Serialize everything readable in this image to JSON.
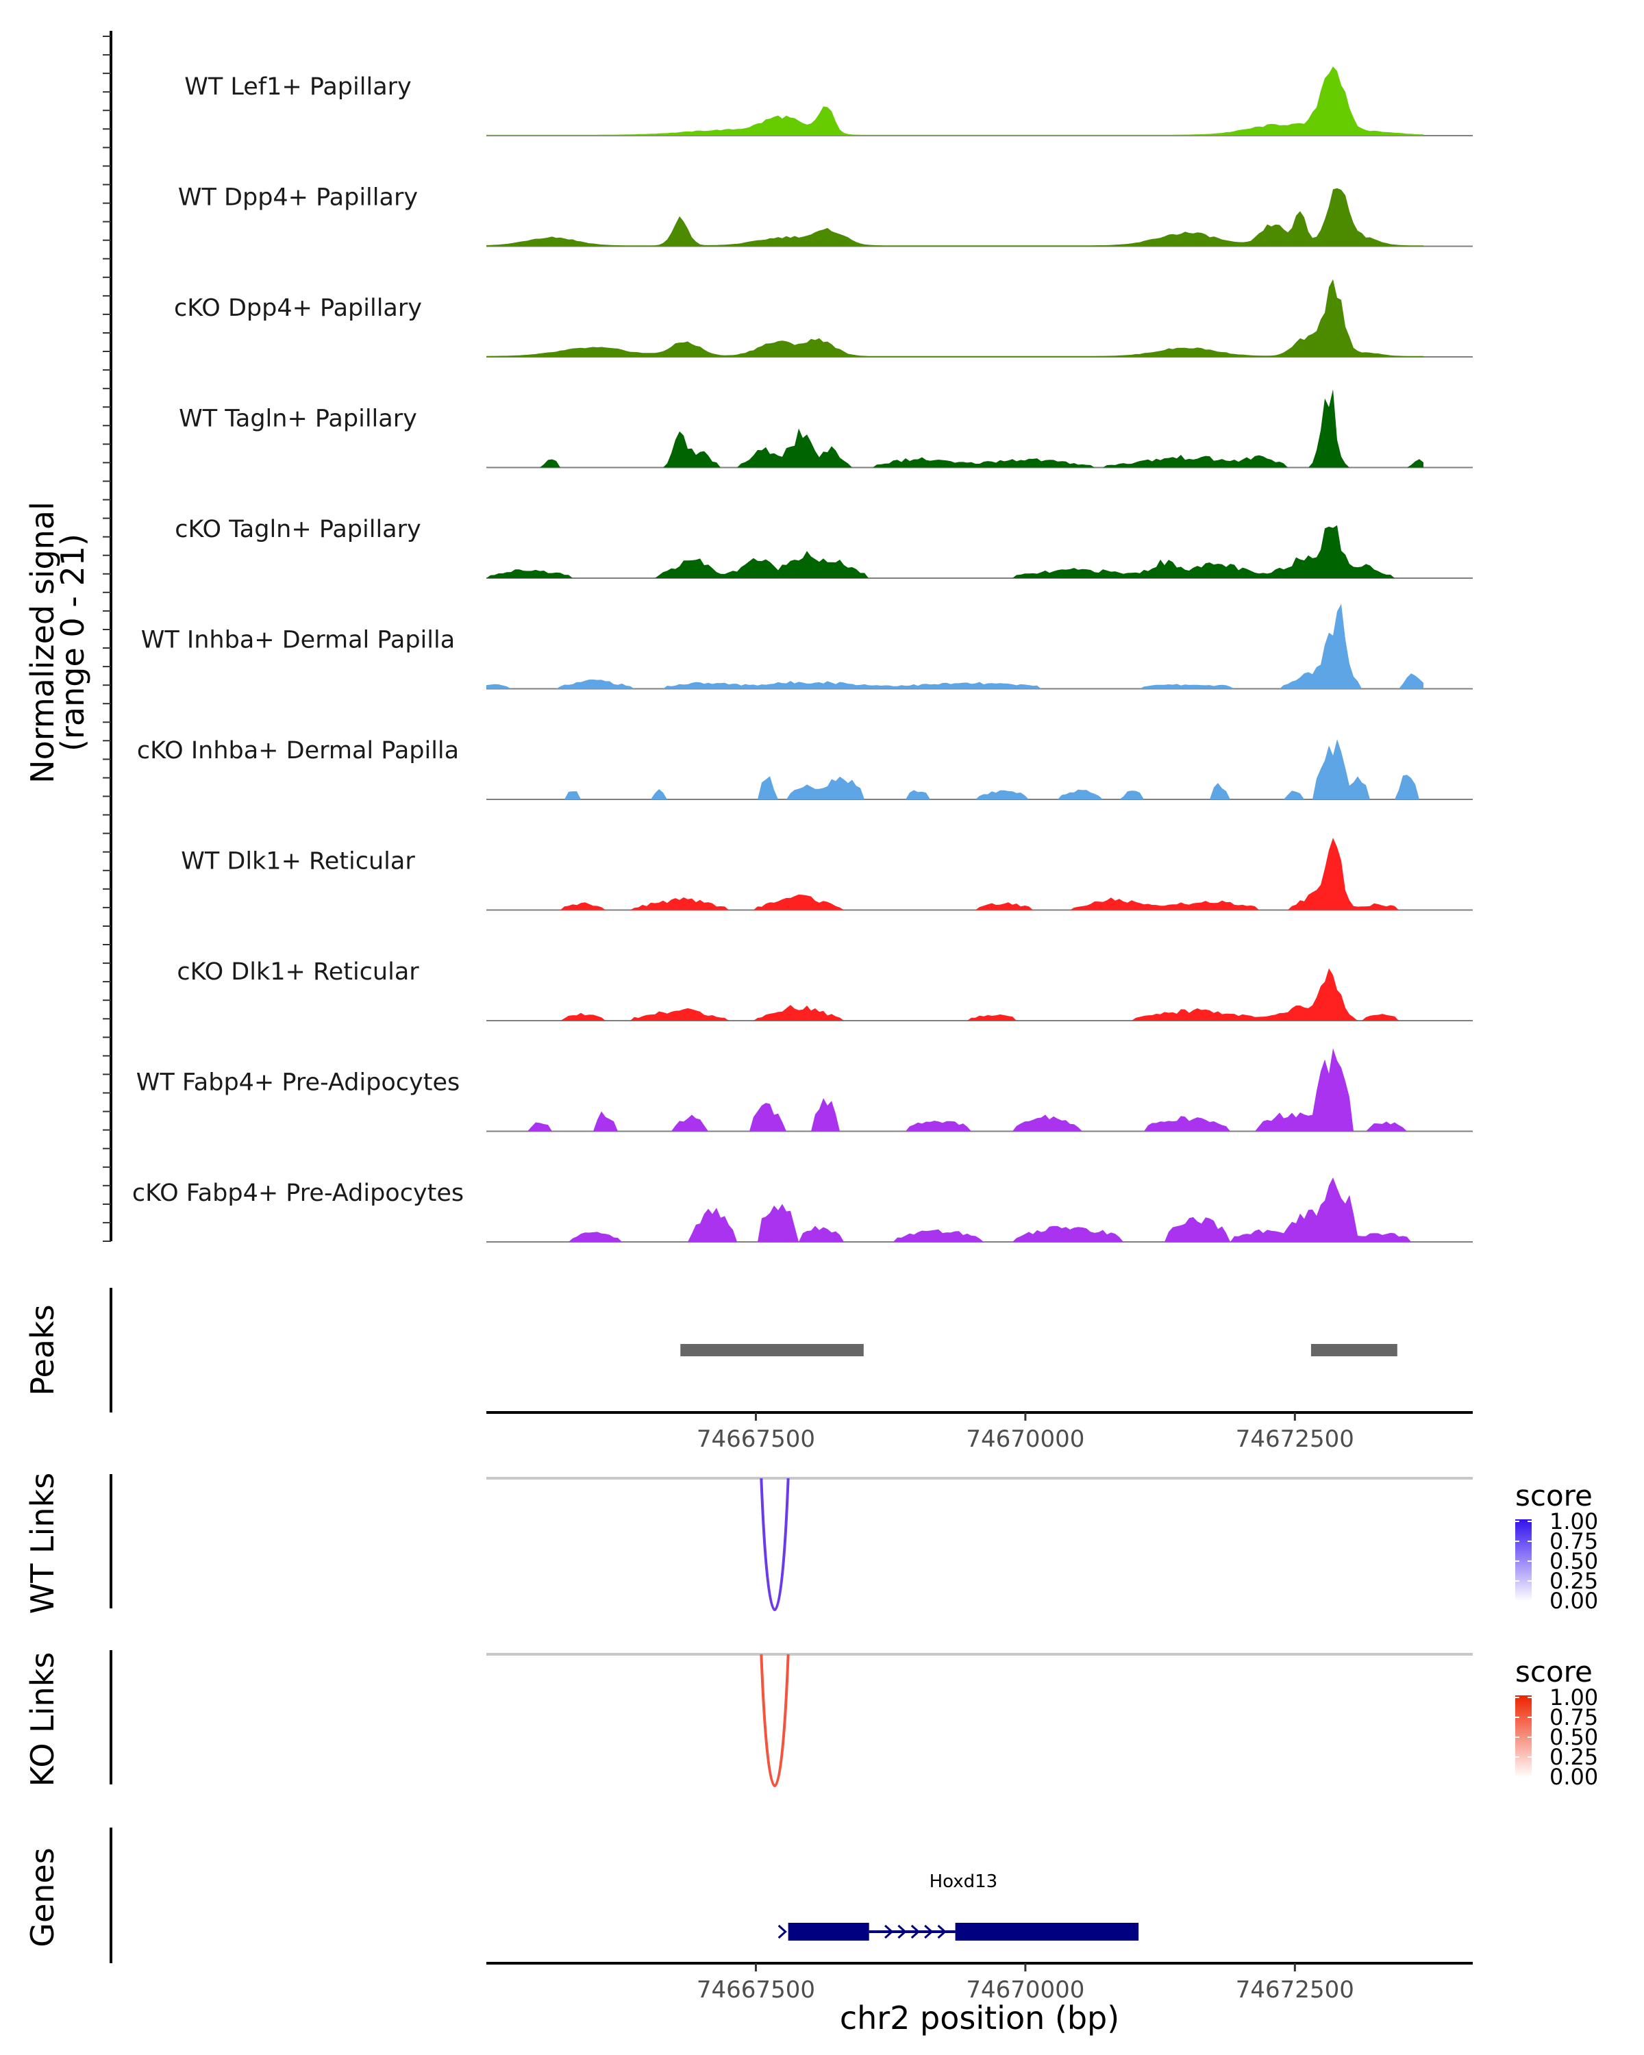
{
  "chart_data": {
    "type": "area",
    "title": "",
    "region": {
      "chromosome": "chr2",
      "start": 74665000,
      "end": 74674150
    },
    "signal_axis_label": [
      "Normalized signal",
      "(range 0 - 21)"
    ],
    "signal_range": [
      0,
      21
    ],
    "x_axis_label": "chr2 position (bp)",
    "x_ticks": [
      74667500,
      74670000,
      74672500
    ],
    "x_tick_labels": [
      "74667500",
      "74670000",
      "74672500"
    ],
    "tracks": [
      {
        "name": "WT Lef1+ Papillary",
        "color": "#66CC00",
        "style": "smooth",
        "peaks": [
          [
            74667250,
            0.07,
            900
          ],
          [
            74667750,
            0.23,
            400
          ],
          [
            74668150,
            0.38,
            160
          ],
          [
            74672400,
            0.15,
            700
          ],
          [
            74672850,
            0.95,
            230
          ],
          [
            74673200,
            0.05,
            500
          ]
        ]
      },
      {
        "name": "WT Dpp4+ Papillary",
        "color": "#4C8A00",
        "style": "smooth",
        "peaks": [
          [
            74665600,
            0.12,
            500
          ],
          [
            74666800,
            0.38,
            160
          ],
          [
            74667800,
            0.12,
            600
          ],
          [
            74668200,
            0.18,
            300
          ],
          [
            74671500,
            0.18,
            600
          ],
          [
            74672300,
            0.3,
            250
          ],
          [
            74672550,
            0.42,
            130
          ],
          [
            74672900,
            0.83,
            220
          ],
          [
            74673150,
            0.1,
            300
          ]
        ]
      },
      {
        "name": "cKO Dpp4+ Papillary",
        "color": "#4C8A00",
        "style": "smooth",
        "peaks": [
          [
            74666000,
            0.12,
            700
          ],
          [
            74666850,
            0.2,
            300
          ],
          [
            74667700,
            0.2,
            400
          ],
          [
            74668100,
            0.22,
            300
          ],
          [
            74671500,
            0.12,
            600
          ],
          [
            74672600,
            0.25,
            250
          ],
          [
            74672860,
            1.0,
            190
          ],
          [
            74673150,
            0.05,
            300
          ]
        ]
      },
      {
        "name": "WT Tagln+ Papillary",
        "color": "#006400",
        "style": "jagged",
        "peaks": [
          [
            74665600,
            0.12,
            120
          ],
          [
            74666800,
            0.42,
            150
          ],
          [
            74667000,
            0.2,
            200
          ],
          [
            74667600,
            0.25,
            300
          ],
          [
            74667920,
            0.45,
            200
          ],
          [
            74668200,
            0.25,
            200
          ],
          [
            74669000,
            0.12,
            600
          ],
          [
            74670000,
            0.12,
            800
          ],
          [
            74671500,
            0.15,
            900
          ],
          [
            74672200,
            0.12,
            300
          ],
          [
            74672810,
            1.16,
            140
          ],
          [
            74673650,
            0.12,
            120
          ]
        ]
      },
      {
        "name": "cKO Tagln+ Papillary",
        "color": "#006400",
        "style": "jagged",
        "peaks": [
          [
            74665400,
            0.12,
            600
          ],
          [
            74666900,
            0.28,
            350
          ],
          [
            74667500,
            0.28,
            300
          ],
          [
            74667950,
            0.37,
            300
          ],
          [
            74668300,
            0.2,
            300
          ],
          [
            74670500,
            0.12,
            900
          ],
          [
            74671300,
            0.2,
            300
          ],
          [
            74671800,
            0.2,
            500
          ],
          [
            74672600,
            0.3,
            400
          ],
          [
            74672830,
            0.7,
            160
          ],
          [
            74673100,
            0.18,
            400
          ]
        ]
      },
      {
        "name": "WT Inhba+ Dermal Papilla",
        "color": "#5DA5E5",
        "style": "jagged",
        "peaks": [
          [
            74665000,
            0.06,
            500
          ],
          [
            74666000,
            0.12,
            500
          ],
          [
            74667000,
            0.08,
            600
          ],
          [
            74668000,
            0.1,
            900
          ],
          [
            74669500,
            0.08,
            1200
          ],
          [
            74671500,
            0.06,
            1000
          ],
          [
            74672700,
            0.25,
            350
          ],
          [
            74672900,
            1.05,
            180
          ],
          [
            74673600,
            0.25,
            150
          ]
        ]
      },
      {
        "name": "cKO Inhba+ Dermal Papilla",
        "color": "#5DA5E5",
        "style": "blocky",
        "peaks": [
          [
            74665800,
            0.12,
            80
          ],
          [
            74666600,
            0.12,
            80
          ],
          [
            74667600,
            0.35,
            80
          ],
          [
            74668000,
            0.2,
            200
          ],
          [
            74668300,
            0.3,
            200
          ],
          [
            74669000,
            0.12,
            120
          ],
          [
            74669800,
            0.12,
            250
          ],
          [
            74670500,
            0.12,
            200
          ],
          [
            74671000,
            0.12,
            100
          ],
          [
            74671800,
            0.2,
            90
          ],
          [
            74672500,
            0.12,
            80
          ],
          [
            74672850,
            0.75,
            160
          ],
          [
            74673100,
            0.3,
            80
          ],
          [
            74673550,
            0.35,
            90
          ]
        ]
      },
      {
        "name": "WT Dlk1+ Reticular",
        "color": "#FF2020",
        "style": "jagged",
        "peaks": [
          [
            74665900,
            0.1,
            300
          ],
          [
            74666800,
            0.15,
            600
          ],
          [
            74667900,
            0.2,
            500
          ],
          [
            74669800,
            0.1,
            400
          ],
          [
            74670800,
            0.15,
            500
          ],
          [
            74671700,
            0.12,
            700
          ],
          [
            74672700,
            0.22,
            300
          ],
          [
            74672870,
            0.95,
            140
          ],
          [
            74673250,
            0.08,
            400
          ]
        ]
      },
      {
        "name": "cKO Dlk1+ Reticular",
        "color": "#FF2020",
        "style": "jagged",
        "peaks": [
          [
            74665900,
            0.1,
            300
          ],
          [
            74666800,
            0.15,
            600
          ],
          [
            74667900,
            0.2,
            500
          ],
          [
            74669700,
            0.08,
            400
          ],
          [
            74671600,
            0.15,
            800
          ],
          [
            74672600,
            0.2,
            400
          ],
          [
            74672840,
            0.6,
            180
          ],
          [
            74673300,
            0.08,
            300
          ]
        ]
      },
      {
        "name": "WT Fabp4+ Pre-Adipocytes",
        "color": "#A933EE",
        "style": "blocky",
        "peaks": [
          [
            74665500,
            0.12,
            100
          ],
          [
            74666100,
            0.25,
            100
          ],
          [
            74666900,
            0.2,
            150
          ],
          [
            74667600,
            0.35,
            150
          ],
          [
            74668150,
            0.45,
            120
          ],
          [
            74669200,
            0.15,
            300
          ],
          [
            74670200,
            0.2,
            300
          ],
          [
            74671500,
            0.18,
            400
          ],
          [
            74672500,
            0.25,
            350
          ],
          [
            74672850,
            1.05,
            170
          ],
          [
            74673350,
            0.12,
            200
          ]
        ]
      },
      {
        "name": "cKO Fabp4+ Pre-Adipocytes",
        "color": "#A933EE",
        "style": "blocky",
        "peaks": [
          [
            74666000,
            0.12,
            250
          ],
          [
            74667100,
            0.42,
            200
          ],
          [
            74667700,
            0.58,
            180
          ],
          [
            74668100,
            0.2,
            200
          ],
          [
            74669200,
            0.15,
            400
          ],
          [
            74670400,
            0.2,
            500
          ],
          [
            74671600,
            0.3,
            300
          ],
          [
            74672200,
            0.15,
            300
          ],
          [
            74672700,
            0.4,
            300
          ],
          [
            74672880,
            0.78,
            200
          ],
          [
            74673300,
            0.12,
            300
          ]
        ]
      }
    ],
    "peaks_track": {
      "label": "Peaks",
      "color": "#666666",
      "ranges": [
        [
          74666800,
          74668500
        ],
        [
          74672650,
          74673450
        ]
      ]
    },
    "links": [
      {
        "label": "WT Links",
        "color": "#6B3BEB",
        "start": 74667550,
        "end": 74667800,
        "score": 0.75,
        "legend_colors": [
          "#FFFFFF",
          "#3311EE"
        ]
      },
      {
        "label": "KO Links",
        "color": "#F4533D",
        "start": 74667550,
        "end": 74667800,
        "score": 0.75,
        "legend_colors": [
          "#FFFFFF",
          "#EE2200"
        ]
      }
    ],
    "legend": {
      "title": "score",
      "labels": [
        "1.00",
        "0.75",
        "0.50",
        "0.25",
        "0.00"
      ]
    },
    "genes_track": {
      "label": "Genes",
      "color": "#000080",
      "gene": "Hoxd13",
      "start": 74667800,
      "end": 74671050,
      "exons": [
        [
          74667800,
          74668550
        ],
        [
          74669350,
          74671050
        ]
      ],
      "intron": [
        74668550,
        74669350
      ]
    }
  }
}
